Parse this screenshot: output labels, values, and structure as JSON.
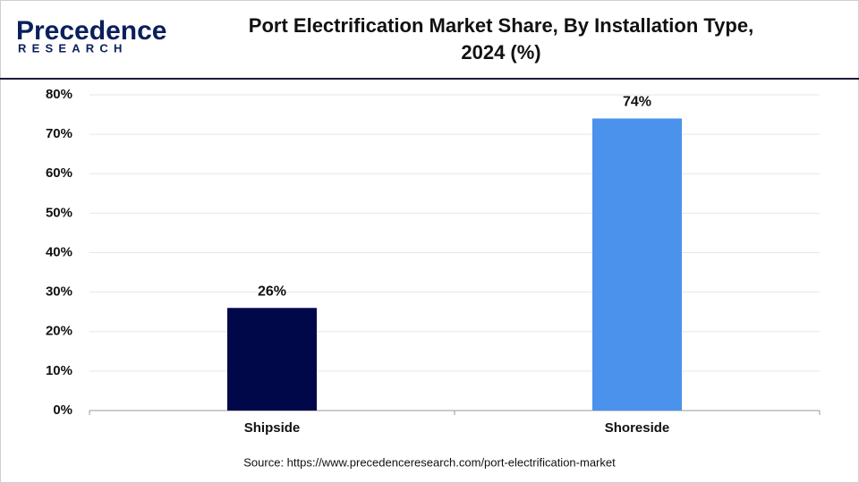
{
  "logo": {
    "name": "Precedence",
    "tagline": "RESEARCH"
  },
  "chart_data": {
    "type": "bar",
    "title": [
      "Port Electrification Market Share, By Installation Type,",
      "2024 (%)"
    ],
    "categories": [
      "Shipside",
      "Shoreside"
    ],
    "values": [
      26,
      74
    ],
    "value_labels": [
      "26%",
      "74%"
    ],
    "colors": [
      "#00084a",
      "#4a92ec"
    ],
    "ylim": [
      0,
      80
    ],
    "yticks": [
      {
        "value": 0,
        "label": "0%"
      },
      {
        "value": 10,
        "label": "10%"
      },
      {
        "value": 20,
        "label": "20%"
      },
      {
        "value": 30,
        "label": "30%"
      },
      {
        "value": 40,
        "label": "40%"
      },
      {
        "value": 50,
        "label": "50%"
      },
      {
        "value": 60,
        "label": "60%"
      },
      {
        "value": 70,
        "label": "70%"
      },
      {
        "value": 80,
        "label": "80%"
      }
    ],
    "grid": true,
    "source": "Source: https://www.precedenceresearch.com/port-electrification-market"
  }
}
